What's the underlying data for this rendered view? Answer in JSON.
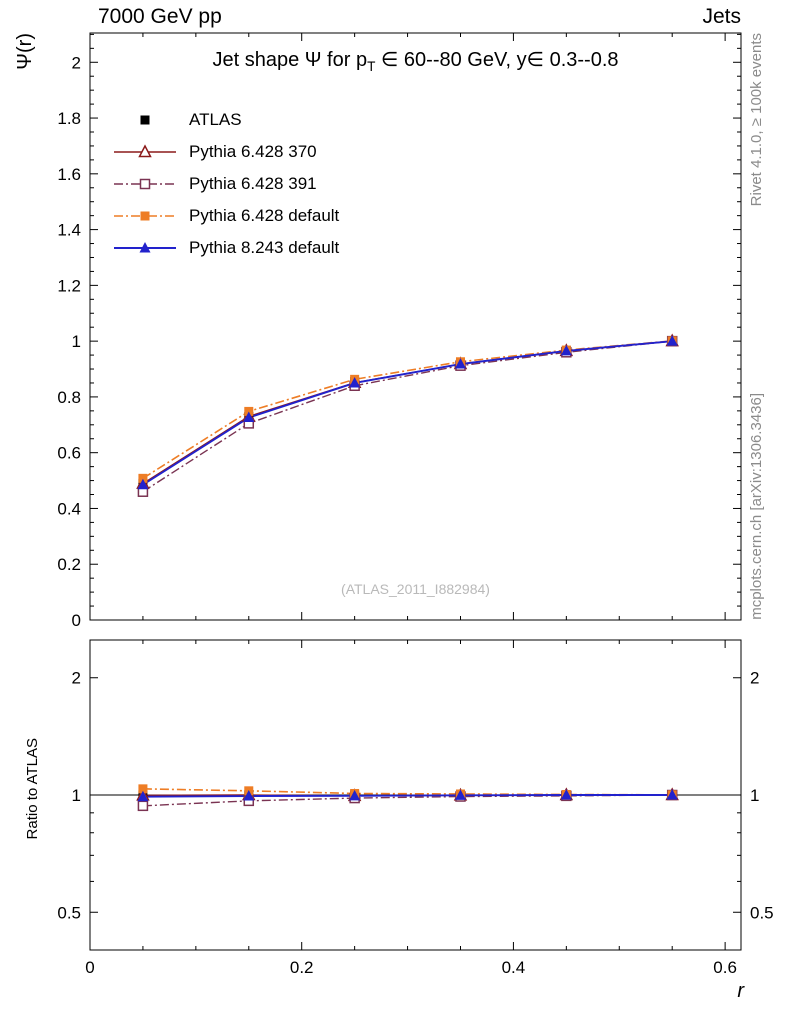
{
  "header": {
    "left": "7000 GeV pp",
    "right": "Jets"
  },
  "side_notes": {
    "rivet": "Rivet 4.1.0, ≥ 100k events",
    "mcplots": "mcplots.cern.ch [arXiv:1306.3436]"
  },
  "watermark": "(ATLAS_2011_I882984)",
  "chart_data": {
    "type": "line",
    "title": {
      "prefix": "Jet shape Ψ for p",
      "sub": "T",
      "suffix": " ∈ 60--80 GeV, y∈ 0.3--0.8"
    },
    "xlabel": "r",
    "legend_position": "top-left",
    "grid": false,
    "x_axis": {
      "lim": [
        0,
        0.615
      ],
      "ticks": [
        "0",
        "0.2",
        "0.4",
        "0.6"
      ],
      "minor_step": 0.05
    },
    "x": [
      0.05,
      0.15,
      0.25,
      0.35,
      0.45,
      0.55
    ],
    "main": {
      "ylabel": "Ψ(r)",
      "scale": "linear",
      "lim": [
        0,
        2.105
      ],
      "ticks": [
        "0",
        "0.2",
        "0.4",
        "0.6",
        "0.8",
        "1",
        "1.2",
        "1.4",
        "1.6",
        "1.8",
        "2"
      ],
      "minor_step": 0.05,
      "series": [
        {
          "name": "ATLAS",
          "color": "#000000",
          "marker": "square-filled",
          "line": "none",
          "width": 0,
          "values": [
            0.49,
            0.73,
            0.855,
            0.92,
            0.965,
            1.0
          ]
        },
        {
          "name": "Pythia 6.428 370",
          "color": "#8b1a1a",
          "marker": "triangle-open",
          "line": "solid",
          "width": 1.4,
          "values": [
            0.489,
            0.73,
            0.851,
            0.918,
            0.965,
            1.0
          ]
        },
        {
          "name": "Pythia 6.428 391",
          "color": "#7a3352",
          "marker": "square-open",
          "line": "dashdot",
          "width": 1.4,
          "values": [
            0.46,
            0.705,
            0.84,
            0.912,
            0.96,
            1.0
          ]
        },
        {
          "name": "Pythia 6.428 default",
          "color": "#ee7d25",
          "marker": "square-filled",
          "line": "dashdot",
          "width": 1.6,
          "values": [
            0.508,
            0.748,
            0.863,
            0.926,
            0.968,
            1.001
          ]
        },
        {
          "name": "Pythia 8.243 default",
          "color": "#2222cc",
          "marker": "triangle-filled",
          "line": "solid",
          "width": 1.9,
          "values": [
            0.485,
            0.726,
            0.85,
            0.918,
            0.965,
            1.0
          ]
        }
      ]
    },
    "ratio": {
      "ylabel": "Ratio to ATLAS",
      "scale": "log",
      "lim": [
        0.4,
        2.5
      ],
      "ticks": [
        "0.5",
        "1",
        "2"
      ],
      "minor_ticks": [
        0.4,
        0.6,
        0.7,
        0.8,
        0.9
      ],
      "reference": 1,
      "series": [
        {
          "name": "ATLAS",
          "color": "#000000",
          "marker": "square-filled",
          "line": "none",
          "width": 0,
          "values": [
            1.0,
            1.0,
            1.0,
            1.0,
            1.0,
            1.0
          ]
        },
        {
          "name": "Pythia 6.428 370",
          "color": "#8b1a1a",
          "marker": "triangle-open",
          "line": "solid",
          "width": 1.4,
          "values": [
            0.998,
            1.0,
            0.995,
            0.998,
            1.0,
            1.0
          ]
        },
        {
          "name": "Pythia 6.428 391",
          "color": "#7a3352",
          "marker": "square-open",
          "line": "dashdot",
          "width": 1.4,
          "values": [
            0.938,
            0.966,
            0.982,
            0.991,
            0.995,
            1.0
          ]
        },
        {
          "name": "Pythia 6.428 default",
          "color": "#ee7d25",
          "marker": "square-filled",
          "line": "dashdot",
          "width": 1.6,
          "values": [
            1.037,
            1.025,
            1.009,
            1.006,
            1.003,
            1.001
          ]
        },
        {
          "name": "Pythia 8.243 default",
          "color": "#2222cc",
          "marker": "triangle-filled",
          "line": "solid",
          "width": 1.9,
          "values": [
            0.99,
            0.994,
            0.995,
            0.998,
            1.0,
            1.0
          ]
        }
      ]
    }
  }
}
